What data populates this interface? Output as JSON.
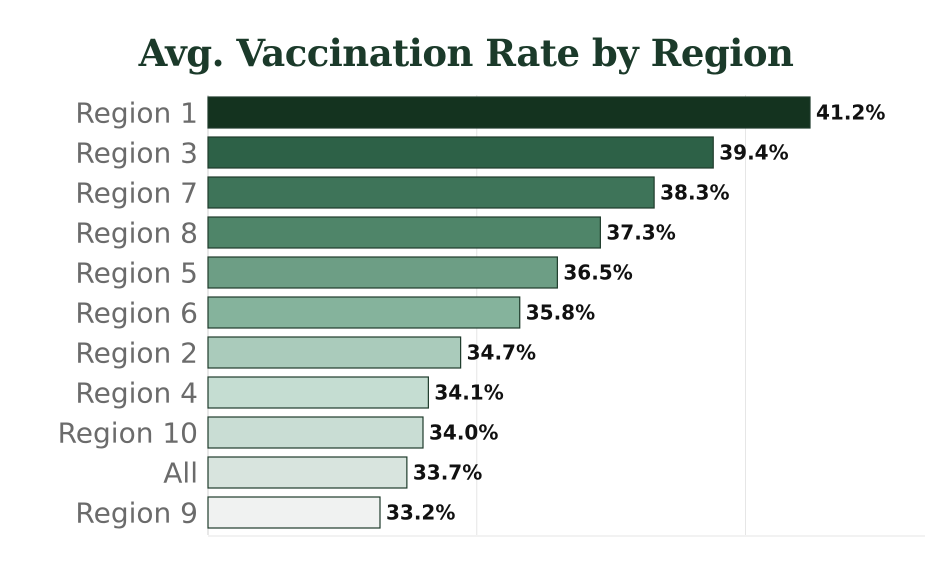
{
  "chart_data": {
    "type": "bar",
    "orientation": "horizontal",
    "title": "Avg. Vaccination Rate by Region",
    "xlabel": "",
    "ylabel": "",
    "xlim": [
      30,
      42
    ],
    "grid": true,
    "value_suffix": "%",
    "categories": [
      "Region 1",
      "Region 3",
      "Region 7",
      "Region 8",
      "Region 5",
      "Region 6",
      "Region 2",
      "Region 4",
      "Region 10",
      "All",
      "Region 9"
    ],
    "values": [
      41.2,
      39.4,
      38.3,
      37.3,
      36.5,
      35.8,
      34.7,
      34.1,
      34.0,
      33.7,
      33.2
    ],
    "value_labels": [
      "41.2%",
      "39.4%",
      "38.3%",
      "37.3%",
      "36.5%",
      "35.8%",
      "34.7%",
      "34.1%",
      "34.0%",
      "33.7%",
      "33.2%"
    ],
    "bar_colors": [
      "#14331f",
      "#2d6147",
      "#3e7459",
      "#4f8569",
      "#6d9e85",
      "#85b39c",
      "#aacbbb",
      "#c5ddd2",
      "#c9ddd4",
      "#d8e4de",
      "#f0f2f1"
    ]
  }
}
